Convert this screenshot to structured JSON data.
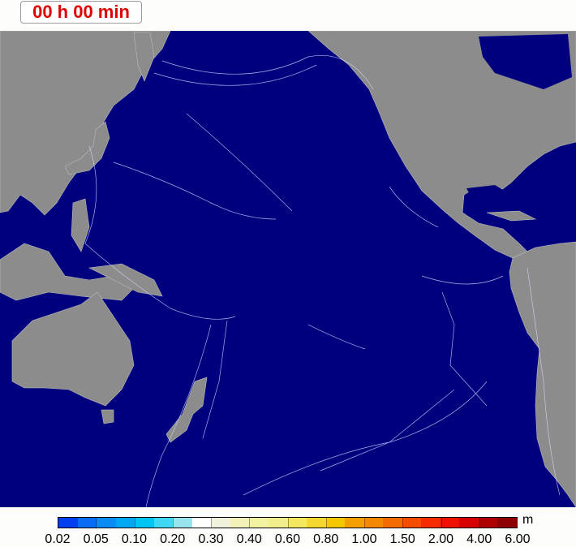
{
  "timer": {
    "label": "00 h 00 min",
    "color": "#e00000"
  },
  "map": {
    "ocean_color": "#00007f",
    "land_color": "#8c8c8c",
    "contour_color": "#d8d8ff"
  },
  "legend": {
    "unit": "m",
    "tick_labels": [
      "0.02",
      "0.05",
      "0.10",
      "0.20",
      "0.30",
      "0.40",
      "0.60",
      "0.80",
      "1.00",
      "1.50",
      "2.00",
      "4.00",
      "6.00"
    ],
    "colors": [
      "#0040f0",
      "#0a6cf4",
      "#0a8cf4",
      "#00a8f4",
      "#00c4f4",
      "#40d8f4",
      "#9ae4ee",
      "#ffffff",
      "#f2f2dc",
      "#f2f2b8",
      "#f2f2a0",
      "#f2f08c",
      "#f4e860",
      "#f4d830",
      "#f4c800",
      "#f4a000",
      "#f48800",
      "#f46c00",
      "#f44c00",
      "#f42c00",
      "#f01000",
      "#d80000",
      "#b00000",
      "#8c0000"
    ]
  }
}
